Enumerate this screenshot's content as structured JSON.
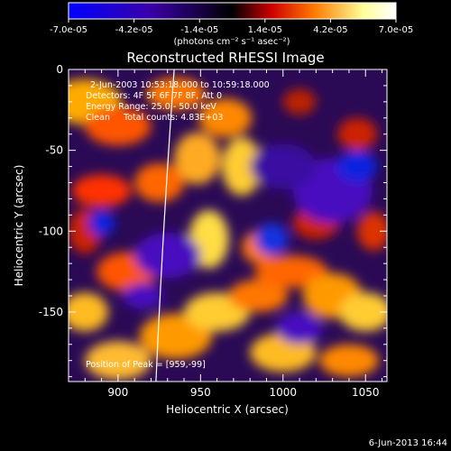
{
  "colorbar": {
    "ticks": [
      "-7.0e-05",
      "-4.2e-05",
      "-1.4e-05",
      "1.4e-05",
      "4.2e-05",
      "7.0e-05"
    ],
    "unit_label": "(photons cm⁻² s⁻¹ asec⁻²)",
    "colors": [
      "#0000ff",
      "#3b00a8",
      "#000000",
      "#cc0000",
      "#ff7a00",
      "#ffff99",
      "#ffffff"
    ]
  },
  "annotations": {
    "time": "2-Jun-2003 10:53:18.000 to 10:59:18.000",
    "detectors": "Detectors: 4F 5F 6F 7F 8F, Att 0",
    "energy": "Energy Range: 25.0 - 50.0 keV",
    "clean": "Clean     Total counts: 4.83E+03",
    "peak": "Position of Peak = [959,-99]"
  },
  "footer_date": "6-Jun-2013 16:44",
  "chart_data": {
    "type": "heatmap",
    "title": "Reconstructed RHESSI Image",
    "xlabel": "Heliocentric X (arcsec)",
    "ylabel": "Heliocentric Y (arcsec)",
    "xlim": [
      870,
      1063
    ],
    "ylim": [
      -193,
      0
    ],
    "x_ticks": [
      900,
      950,
      1000,
      1050
    ],
    "y_ticks": [
      0,
      -50,
      -100,
      -150
    ],
    "peak": [
      959,
      -99
    ],
    "limb_x_at_y": [
      [
        934,
        0
      ],
      [
        927,
        -100
      ],
      [
        923,
        -193
      ]
    ]
  }
}
